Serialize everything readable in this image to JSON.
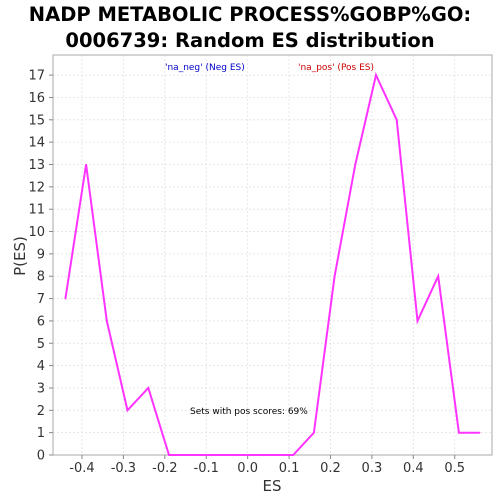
{
  "chart_data": {
    "type": "line",
    "title_line1": "NADP METABOLIC PROCESS%GOBP%GO:",
    "title_line2": "0006739: Random ES distribution",
    "xlabel": "ES",
    "ylabel": "P(ES)",
    "xlim": [
      -0.47,
      0.59
    ],
    "ylim": [
      0,
      17.9
    ],
    "x_ticks": [
      -0.4,
      -0.3,
      -0.2,
      -0.1,
      0.0,
      0.1,
      0.2,
      0.3,
      0.4,
      0.5
    ],
    "x_tick_labels": [
      "-0.4",
      "-0.3",
      "-0.2",
      "-0.1",
      "0.0",
      "0.1",
      "0.2",
      "0.3",
      "0.4",
      "0.5"
    ],
    "y_ticks": [
      0,
      1,
      2,
      3,
      4,
      5,
      6,
      7,
      8,
      9,
      10,
      11,
      12,
      13,
      14,
      15,
      16,
      17
    ],
    "grid": true,
    "legend": {
      "neg_label": "'na_neg' (Neg ES)",
      "neg_color": "#0000cc",
      "pos_label": "'na_pos' (Pos ES)",
      "pos_color": "#cc0000"
    },
    "annotation": "Sets with pos scores: 69%",
    "series": [
      {
        "color": "#ff33ff",
        "x": [
          -0.44,
          -0.39,
          -0.34,
          -0.29,
          -0.24,
          -0.19,
          -0.14,
          -0.09,
          -0.04,
          0.01,
          0.06,
          0.11,
          0.16,
          0.21,
          0.26,
          0.31,
          0.36,
          0.41,
          0.46,
          0.51,
          0.56
        ],
        "y": [
          7,
          13,
          6,
          2,
          3,
          0,
          0,
          0,
          0,
          0,
          0,
          0,
          1,
          8,
          13,
          17,
          15,
          6,
          8,
          1,
          1
        ]
      }
    ]
  }
}
